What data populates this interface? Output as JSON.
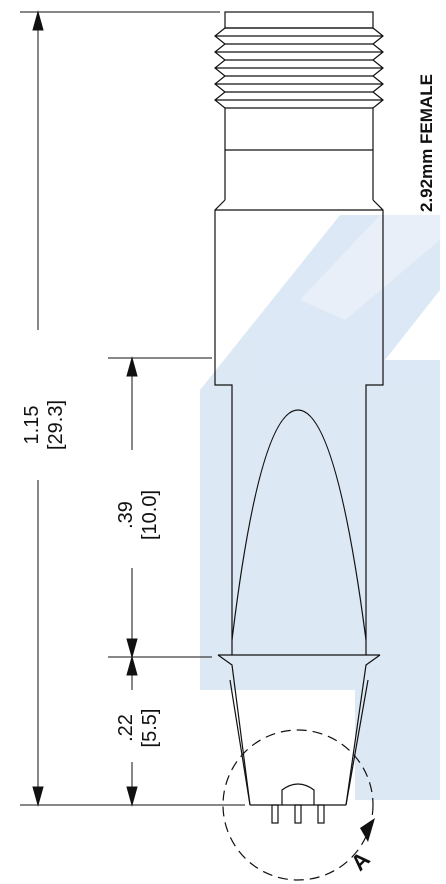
{
  "title": "2.92mm FEMALE",
  "dimensions": {
    "overall": {
      "inch": "1.15",
      "mm": "[29.3]"
    },
    "upper": {
      "inch": ".39",
      "mm": "[10.0]"
    },
    "lower": {
      "inch": ".22",
      "mm": "[5.5]"
    }
  },
  "detail_callout": "A",
  "colors": {
    "outline": "#111111",
    "watermark": "#d6e4f3"
  }
}
